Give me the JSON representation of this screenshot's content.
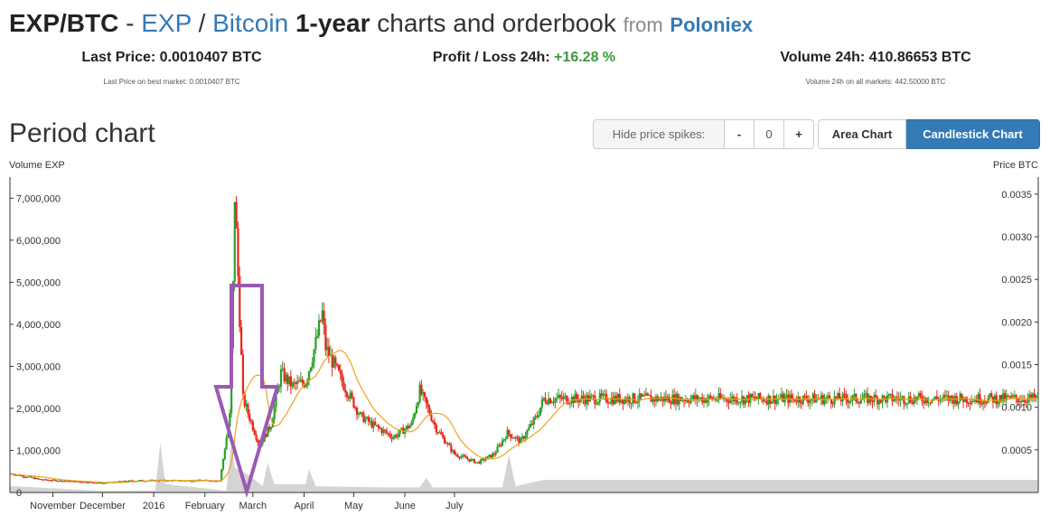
{
  "header": {
    "pair": "EXP/BTC",
    "dash": "-",
    "base": "EXP",
    "slash": "/",
    "quote": "Bitcoin",
    "period": "1-year",
    "rest": "charts and orderbook",
    "from": "from",
    "exchange": "Poloniex"
  },
  "stats": {
    "last_price_label": "Last Price:",
    "last_price_value": "0.0010407 BTC",
    "last_price_sub": "Last Price on best market: 0.0010407 BTC",
    "profit_label": "Profit / Loss 24h:",
    "profit_value": "+16.28 %",
    "volume_label": "Volume 24h:",
    "volume_value": "410.86653 BTC",
    "volume_sub": "Volume 24h on all markets: 442.50000 BTC"
  },
  "section": {
    "title": "Period chart"
  },
  "toolbar": {
    "hide_spikes_label": "Hide price spikes:",
    "minus": "-",
    "spike_value": "0",
    "plus": "+",
    "area_chart": "Area Chart",
    "candlestick_chart": "Candlestick Chart"
  },
  "colors": {
    "up": "#2ca02c",
    "down": "#e8291c",
    "ma": "#f0a21c",
    "volume": "#cccccc",
    "arrow": "#9b59b6",
    "accent": "#337ab7"
  },
  "chart_data": {
    "type": "candlestick",
    "left_axis_label": "Volume EXP",
    "right_axis_label": "Price BTC",
    "volume_ylim": [
      0,
      7500000
    ],
    "price_ylim": [
      0,
      0.0037
    ],
    "volume_ticks": [
      "0",
      "1,000,000",
      "2,000,000",
      "3,000,000",
      "4,000,000",
      "5,000,000",
      "6,000,000",
      "7,000,000"
    ],
    "price_ticks": [
      "0.0005",
      "0.0010",
      "0.0015",
      "0.0020",
      "0.0025",
      "0.0030",
      "0.0035"
    ],
    "x_ticks": [
      "November",
      "December",
      "2016",
      "February",
      "March",
      "April",
      "May",
      "June",
      "July"
    ],
    "price_keypoints": [
      [
        "2015-10-07",
        0.00022
      ],
      [
        "2015-10-25",
        0.00015
      ],
      [
        "2015-12-01",
        0.00011
      ],
      [
        "2015-12-20",
        0.00014
      ],
      [
        "2016-01-10",
        0.00014
      ],
      [
        "2016-02-10",
        0.00014
      ],
      [
        "2016-02-16",
        0.0009
      ],
      [
        "2016-02-18",
        0.0024
      ],
      [
        "2016-02-19",
        0.0035
      ],
      [
        "2016-02-24",
        0.0011
      ],
      [
        "2016-03-05",
        0.00055
      ],
      [
        "2016-03-12",
        0.0008
      ],
      [
        "2016-03-18",
        0.0014
      ],
      [
        "2016-03-25",
        0.00125
      ],
      [
        "2016-04-02",
        0.0013
      ],
      [
        "2016-04-08",
        0.00175
      ],
      [
        "2016-04-12",
        0.0021
      ],
      [
        "2016-04-14",
        0.0017
      ],
      [
        "2016-04-24",
        0.0013
      ],
      [
        "2016-05-05",
        0.0009
      ],
      [
        "2016-05-12",
        0.0008
      ],
      [
        "2016-05-25",
        0.00065
      ],
      [
        "2016-06-05",
        0.0008
      ],
      [
        "2016-06-10",
        0.0012
      ],
      [
        "2016-06-20",
        0.00075
      ],
      [
        "2016-07-01",
        0.00045
      ],
      [
        "2016-07-15",
        0.00035
      ],
      [
        "2016-07-25",
        0.00045
      ],
      [
        "2016-08-02",
        0.0007
      ],
      [
        "2016-08-10",
        0.0006
      ],
      [
        "2016-08-20",
        0.0009
      ],
      [
        "2016-08-24",
        0.0011
      ]
    ],
    "volume_keypoints": [
      [
        "2015-10-07",
        150000
      ],
      [
        "2015-12-01",
        40000
      ],
      [
        "2016-01-02",
        50000
      ],
      [
        "2016-01-05",
        1200000
      ],
      [
        "2016-01-08",
        200000
      ],
      [
        "2016-02-14",
        40000
      ],
      [
        "2016-02-17",
        1200000
      ],
      [
        "2016-02-19",
        600000
      ],
      [
        "2016-02-28",
        400000
      ],
      [
        "2016-03-07",
        150000
      ],
      [
        "2016-03-10",
        700000
      ],
      [
        "2016-03-14",
        200000
      ],
      [
        "2016-04-02",
        200000
      ],
      [
        "2016-04-04",
        550000
      ],
      [
        "2016-04-08",
        150000
      ],
      [
        "2016-05-20",
        120000
      ],
      [
        "2016-06-10",
        120000
      ],
      [
        "2016-06-14",
        350000
      ],
      [
        "2016-06-18",
        120000
      ],
      [
        "2016-07-30",
        120000
      ],
      [
        "2016-08-03",
        900000
      ],
      [
        "2016-08-07",
        150000
      ],
      [
        "2016-08-24",
        300000
      ]
    ]
  }
}
